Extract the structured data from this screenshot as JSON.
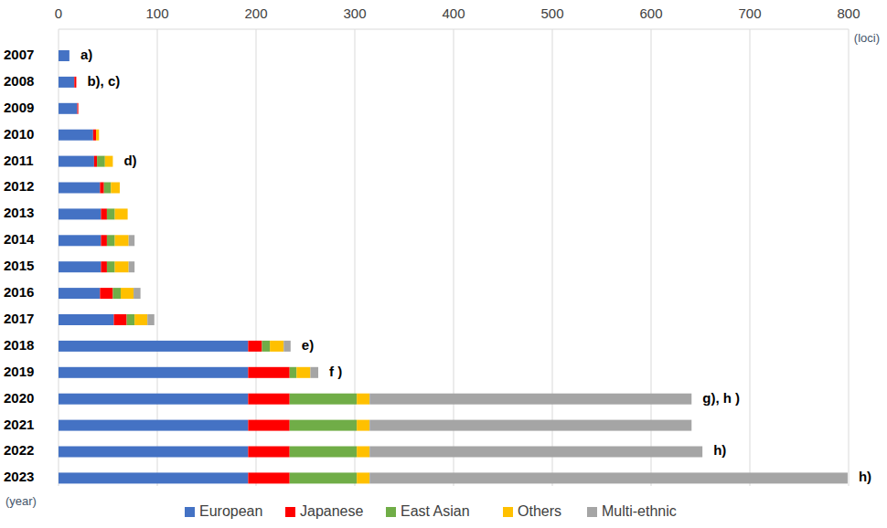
{
  "chart_data": {
    "type": "bar",
    "orientation": "horizontal",
    "stacked": true,
    "grid": true,
    "legend": "bottom",
    "x_label": "(loci)",
    "y_label": "(year)",
    "categories": [
      "2007",
      "2008",
      "2009",
      "2010",
      "2011",
      "2012",
      "2013",
      "2014",
      "2015",
      "2016",
      "2017",
      "2018",
      "2019",
      "2020",
      "2021",
      "2022",
      "2023"
    ],
    "series": [
      {
        "name": "European",
        "color": "#4472c4",
        "values": [
          11,
          16,
          19,
          35,
          36,
          42,
          43,
          43,
          43,
          42,
          56,
          192,
          192,
          192,
          192,
          192,
          192
        ]
      },
      {
        "name": "Japanese",
        "color": "#ff0000",
        "values": [
          0,
          2,
          1,
          3,
          3,
          4,
          6,
          6,
          6,
          13,
          13,
          14,
          42,
          42,
          42,
          42,
          42
        ]
      },
      {
        "name": "East Asian",
        "color": "#70ad47",
        "values": [
          0,
          0,
          0,
          0,
          8,
          7,
          8,
          8,
          8,
          8,
          8,
          8,
          7,
          68,
          68,
          68,
          68
        ]
      },
      {
        "name": "Others",
        "color": "#ffc000",
        "values": [
          0,
          0,
          0,
          3,
          8,
          9,
          13,
          14,
          14,
          13,
          13,
          14,
          14,
          13,
          13,
          13,
          13
        ]
      },
      {
        "name": "Multi-ethnic",
        "color": "#a5a5a5",
        "values": [
          0,
          0,
          0,
          0,
          0,
          0,
          0,
          6,
          6,
          7,
          7,
          7,
          8,
          326,
          326,
          337,
          484
        ]
      }
    ],
    "xlim": [
      0,
      800
    ],
    "xticks": [
      0,
      100,
      200,
      300,
      400,
      500,
      600,
      700,
      800
    ],
    "annotations": [
      {
        "category": "2007",
        "text": "a)"
      },
      {
        "category": "2008",
        "text": "b), c)"
      },
      {
        "category": "2011",
        "text": "d)"
      },
      {
        "category": "2018",
        "text": "e)"
      },
      {
        "category": "2019",
        "text": "f )"
      },
      {
        "category": "2020",
        "text": "g), h )"
      },
      {
        "category": "2022",
        "text": "h)"
      },
      {
        "category": "2023",
        "text": "h)"
      }
    ]
  }
}
